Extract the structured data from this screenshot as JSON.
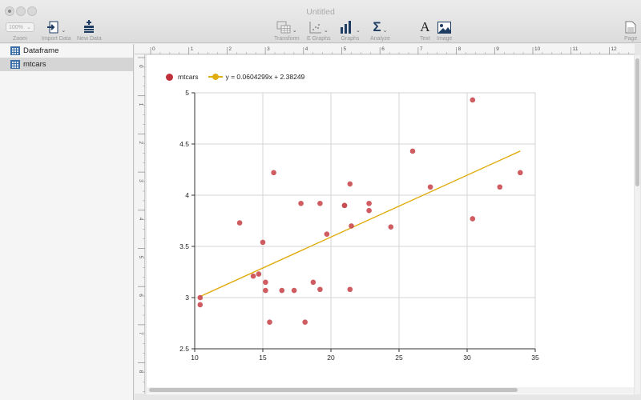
{
  "window": {
    "title": "Untitled"
  },
  "toolbar": {
    "zoom_value": "100%",
    "zoom_label": "Zoom",
    "import_label": "Import Data",
    "new_data_label": "New Data",
    "transform_label": "Transform",
    "egraphs_label": "E Graphs",
    "graphs_label": "Graphs",
    "analyze_label": "Analyze",
    "text_label": "Text",
    "image_label": "Image",
    "page_label": "Page"
  },
  "sidebar": {
    "items": [
      {
        "label": "Dataframe",
        "icon": "table-icon"
      },
      {
        "label": "mtcars",
        "icon": "table-icon"
      }
    ]
  },
  "ruler": {
    "marks": [
      "0",
      "1",
      "2",
      "3",
      "4",
      "5",
      "6",
      "7",
      "8",
      "9",
      "10",
      "11",
      "12"
    ]
  },
  "chart_data": {
    "type": "scatter",
    "legend": {
      "placement": "top-left",
      "entries": [
        {
          "name": "mtcars",
          "color": "#c0303a"
        },
        {
          "name": "y = 0.0604299x + 2.38249",
          "color": "#e0ad10"
        }
      ]
    },
    "xlim": [
      10,
      35
    ],
    "ylim": [
      2.5,
      5
    ],
    "xticks": [
      10,
      15,
      20,
      25,
      30,
      35
    ],
    "yticks": [
      2.5,
      3,
      3.5,
      4,
      4.5,
      5
    ],
    "ytick_labels": [
      "2.5",
      "3",
      "3.5",
      "4",
      "4.5",
      "5"
    ],
    "grid": true,
    "series": [
      {
        "name": "mtcars",
        "color": "#c94a50",
        "points": [
          [
            10.4,
            3.0
          ],
          [
            10.4,
            2.93
          ],
          [
            13.3,
            3.73
          ],
          [
            14.3,
            3.21
          ],
          [
            14.7,
            3.23
          ],
          [
            15.0,
            3.54
          ],
          [
            15.2,
            3.15
          ],
          [
            15.2,
            3.07
          ],
          [
            15.5,
            2.76
          ],
          [
            15.8,
            4.22
          ],
          [
            16.4,
            3.07
          ],
          [
            17.3,
            3.07
          ],
          [
            17.8,
            3.92
          ],
          [
            18.1,
            2.76
          ],
          [
            18.7,
            3.15
          ],
          [
            19.2,
            3.08
          ],
          [
            19.2,
            3.92
          ],
          [
            19.7,
            3.62
          ],
          [
            21.0,
            3.9
          ],
          [
            21.0,
            3.9
          ],
          [
            21.4,
            3.08
          ],
          [
            21.4,
            4.11
          ],
          [
            21.5,
            3.7
          ],
          [
            22.8,
            3.85
          ],
          [
            22.8,
            3.92
          ],
          [
            24.4,
            3.69
          ],
          [
            26.0,
            4.43
          ],
          [
            27.3,
            4.08
          ],
          [
            30.4,
            4.93
          ],
          [
            30.4,
            3.77
          ],
          [
            32.4,
            4.08
          ],
          [
            33.9,
            4.22
          ]
        ]
      }
    ],
    "fit": {
      "name": "y = 0.0604299x + 2.38249",
      "color": "#e0ad10",
      "slope": 0.0604299,
      "intercept": 2.38249,
      "x_range": [
        10.4,
        33.9
      ]
    }
  }
}
